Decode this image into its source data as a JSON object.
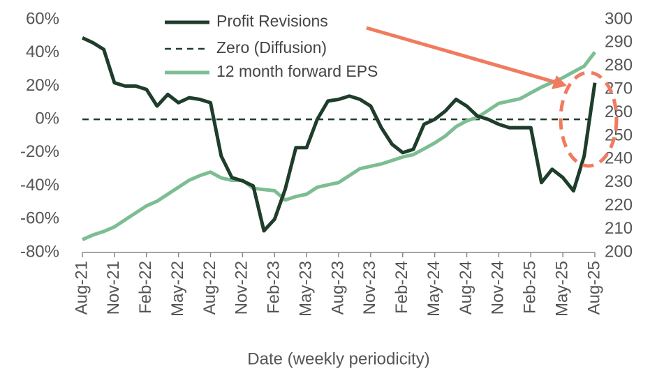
{
  "chart_data": {
    "type": "line",
    "x_label": "Date (weekly periodicity)",
    "x": [
      0,
      1,
      2,
      3,
      4,
      5,
      6,
      7,
      8,
      9,
      10,
      11,
      12,
      13,
      14,
      15,
      16,
      17,
      18,
      19,
      20,
      21,
      22,
      23,
      24,
      25,
      26,
      27,
      28,
      29,
      30,
      31,
      32,
      33,
      34,
      35,
      36,
      37,
      38,
      39,
      40,
      41,
      42,
      43,
      44,
      45,
      46,
      47,
      48
    ],
    "xlim": [
      0,
      48
    ],
    "xticks": [
      {
        "value": 0,
        "label": "Aug-21"
      },
      {
        "value": 3,
        "label": "Nov-21"
      },
      {
        "value": 6,
        "label": "Feb-22"
      },
      {
        "value": 9,
        "label": "May-22"
      },
      {
        "value": 12,
        "label": "Aug-22"
      },
      {
        "value": 15,
        "label": "Nov-22"
      },
      {
        "value": 18,
        "label": "Feb-23"
      },
      {
        "value": 21,
        "label": "May-23"
      },
      {
        "value": 24,
        "label": "Aug-23"
      },
      {
        "value": 27,
        "label": "Nov-23"
      },
      {
        "value": 30,
        "label": "Feb-24"
      },
      {
        "value": 33,
        "label": "May-24"
      },
      {
        "value": 36,
        "label": "Aug-24"
      },
      {
        "value": 39,
        "label": "Nov-24"
      },
      {
        "value": 42,
        "label": "Feb-25"
      },
      {
        "value": 45,
        "label": "May-25"
      },
      {
        "value": 48,
        "label": "Aug-25"
      }
    ],
    "ylim": [
      -80,
      60
    ],
    "yticks": [
      {
        "value": -80,
        "label": "-80%"
      },
      {
        "value": -60,
        "label": "-60%"
      },
      {
        "value": -40,
        "label": "-40%"
      },
      {
        "value": -20,
        "label": "-20%"
      },
      {
        "value": 0,
        "label": "0%"
      },
      {
        "value": 20,
        "label": "20%"
      },
      {
        "value": 40,
        "label": "40%"
      },
      {
        "value": 60,
        "label": "60%"
      }
    ],
    "y2lim": [
      200,
      300
    ],
    "y2ticks": [
      200,
      210,
      220,
      230,
      240,
      250,
      260,
      270,
      280,
      290,
      300
    ],
    "series": [
      {
        "name": "Profit Revisions",
        "color": "#1e3d2b",
        "axis": "y",
        "values": [
          49,
          46,
          42,
          22,
          20,
          20,
          18,
          8,
          15,
          10,
          13,
          12,
          10,
          -22,
          -35,
          -37,
          -40,
          -67,
          -60,
          -42,
          -17,
          -17,
          0,
          11,
          12,
          14,
          12,
          8,
          -5,
          -15,
          -20,
          -18,
          -3,
          0,
          5,
          12,
          8,
          2,
          0,
          -3,
          -5,
          -5,
          -5,
          -38,
          -30,
          -35,
          -43,
          -22,
          22
        ]
      },
      {
        "name": "12 month forward EPS",
        "color": "#7dbd93",
        "axis": "y2",
        "values": [
          205.5,
          207.5,
          209,
          211,
          214,
          217,
          220,
          222,
          225,
          228,
          231,
          233,
          234.5,
          232,
          231,
          231,
          227.5,
          227,
          226.5,
          222.5,
          224,
          225,
          228,
          229,
          230,
          233,
          236,
          237,
          238,
          239.5,
          241,
          242,
          244.5,
          247,
          250,
          254,
          256.5,
          258,
          261,
          264,
          265,
          266,
          268.5,
          271,
          273,
          275,
          277.5,
          280,
          286
        ]
      }
    ],
    "zero_line": {
      "name": "Zero (Diffusion)",
      "value": 0,
      "color": "#1e3d2b"
    }
  }
}
